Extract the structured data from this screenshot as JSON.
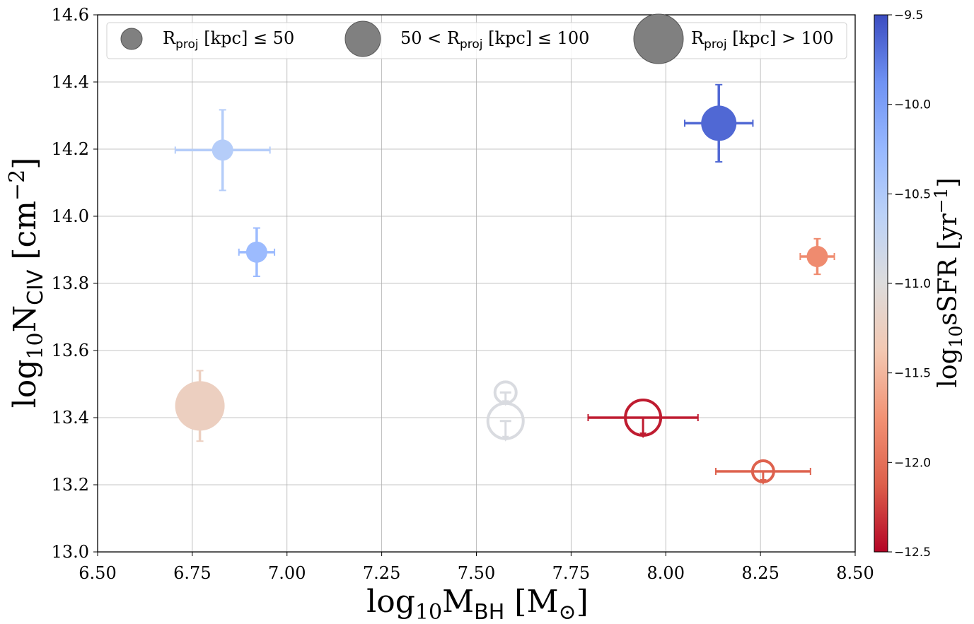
{
  "chart_data": {
    "type": "scatter",
    "xlabel": {
      "prefix": "log",
      "sub": "10",
      "main": "M",
      "main_sub": "BH",
      "unit": " [M",
      "unit_sub": "⊙",
      "close": "]"
    },
    "ylabel": {
      "prefix": "log",
      "sub": "10",
      "main": "N",
      "main_sub": "CIV",
      "unit": " [cm",
      "unit_sup": "−2",
      "close": "]"
    },
    "colorbar": {
      "label": {
        "prefix": "log",
        "sub": "10",
        "main": "sSFR [yr",
        "sup": "−1",
        "close": "]"
      },
      "range": [
        -12.5,
        -9.5
      ],
      "ticks": [
        -9.5,
        -10.0,
        -10.5,
        -11.0,
        -11.5,
        -12.0,
        -12.5
      ],
      "tick_labels": [
        "−9.5",
        "−10.0",
        "−10.5",
        "−11.0",
        "−11.5",
        "−12.0",
        "−12.5"
      ],
      "colormap": "coolwarm"
    },
    "xlim": [
      6.5,
      8.5
    ],
    "ylim": [
      13.0,
      14.6
    ],
    "xticks": [
      6.5,
      6.75,
      7.0,
      7.25,
      7.5,
      7.75,
      8.0,
      8.25,
      8.5
    ],
    "xtick_labels": [
      "6.50",
      "6.75",
      "7.00",
      "7.25",
      "7.50",
      "7.75",
      "8.00",
      "8.25",
      "8.50"
    ],
    "yticks": [
      13.0,
      13.2,
      13.4,
      13.6,
      13.8,
      14.0,
      14.2,
      14.4,
      14.6
    ],
    "ytick_labels": [
      "13.0",
      "13.2",
      "13.4",
      "13.6",
      "13.8",
      "14.0",
      "14.2",
      "14.4",
      "14.6"
    ],
    "grid": true,
    "legend": {
      "placement": "top",
      "entries": [
        {
          "size_class": "small",
          "pre": "R",
          "sub": "proj",
          "post": " [kpc]  ≤  50"
        },
        {
          "size_class": "medium",
          "pre": "50 < R",
          "sub": "proj",
          "post": " [kpc]  ≤  100"
        },
        {
          "size_class": "large",
          "pre": "R",
          "sub": "proj",
          "post": " [kpc] > 100"
        }
      ]
    },
    "points": [
      {
        "x": 6.83,
        "y": 14.197,
        "xerr": 0.125,
        "yerr": 0.12,
        "ssfr": -10.55,
        "size_class": "small",
        "upper_limit": false
      },
      {
        "x": 6.92,
        "y": 13.893,
        "xerr": 0.047,
        "yerr": 0.072,
        "ssfr": -10.3,
        "size_class": "small",
        "upper_limit": false
      },
      {
        "x": 6.77,
        "y": 13.435,
        "xerr": 0.0,
        "yerr": 0.105,
        "ssfr": -11.25,
        "size_class": "large",
        "upper_limit": false
      },
      {
        "x": 8.14,
        "y": 14.277,
        "xerr": 0.09,
        "yerr": 0.115,
        "ssfr": -9.65,
        "size_class": "medium",
        "upper_limit": false
      },
      {
        "x": 8.4,
        "y": 13.88,
        "xerr": 0.045,
        "yerr": 0.053,
        "ssfr": -11.8,
        "size_class": "small",
        "upper_limit": false
      },
      {
        "x": 7.577,
        "y": 13.475,
        "xerr": 0.0,
        "yerr": 0.0,
        "ssfr": -10.95,
        "size_class": "small",
        "upper_limit": true
      },
      {
        "x": 7.577,
        "y": 13.39,
        "xerr": 0.0,
        "yerr": 0.0,
        "ssfr": -10.95,
        "size_class": "medium",
        "upper_limit": true
      },
      {
        "x": 7.94,
        "y": 13.4,
        "xerr": 0.145,
        "yerr": 0.0,
        "ssfr": -12.4,
        "size_class": "medium",
        "upper_limit": true
      },
      {
        "x": 8.257,
        "y": 13.24,
        "xerr": 0.125,
        "yerr": 0.0,
        "ssfr": -12.1,
        "size_class": "small",
        "upper_limit": true
      }
    ]
  }
}
